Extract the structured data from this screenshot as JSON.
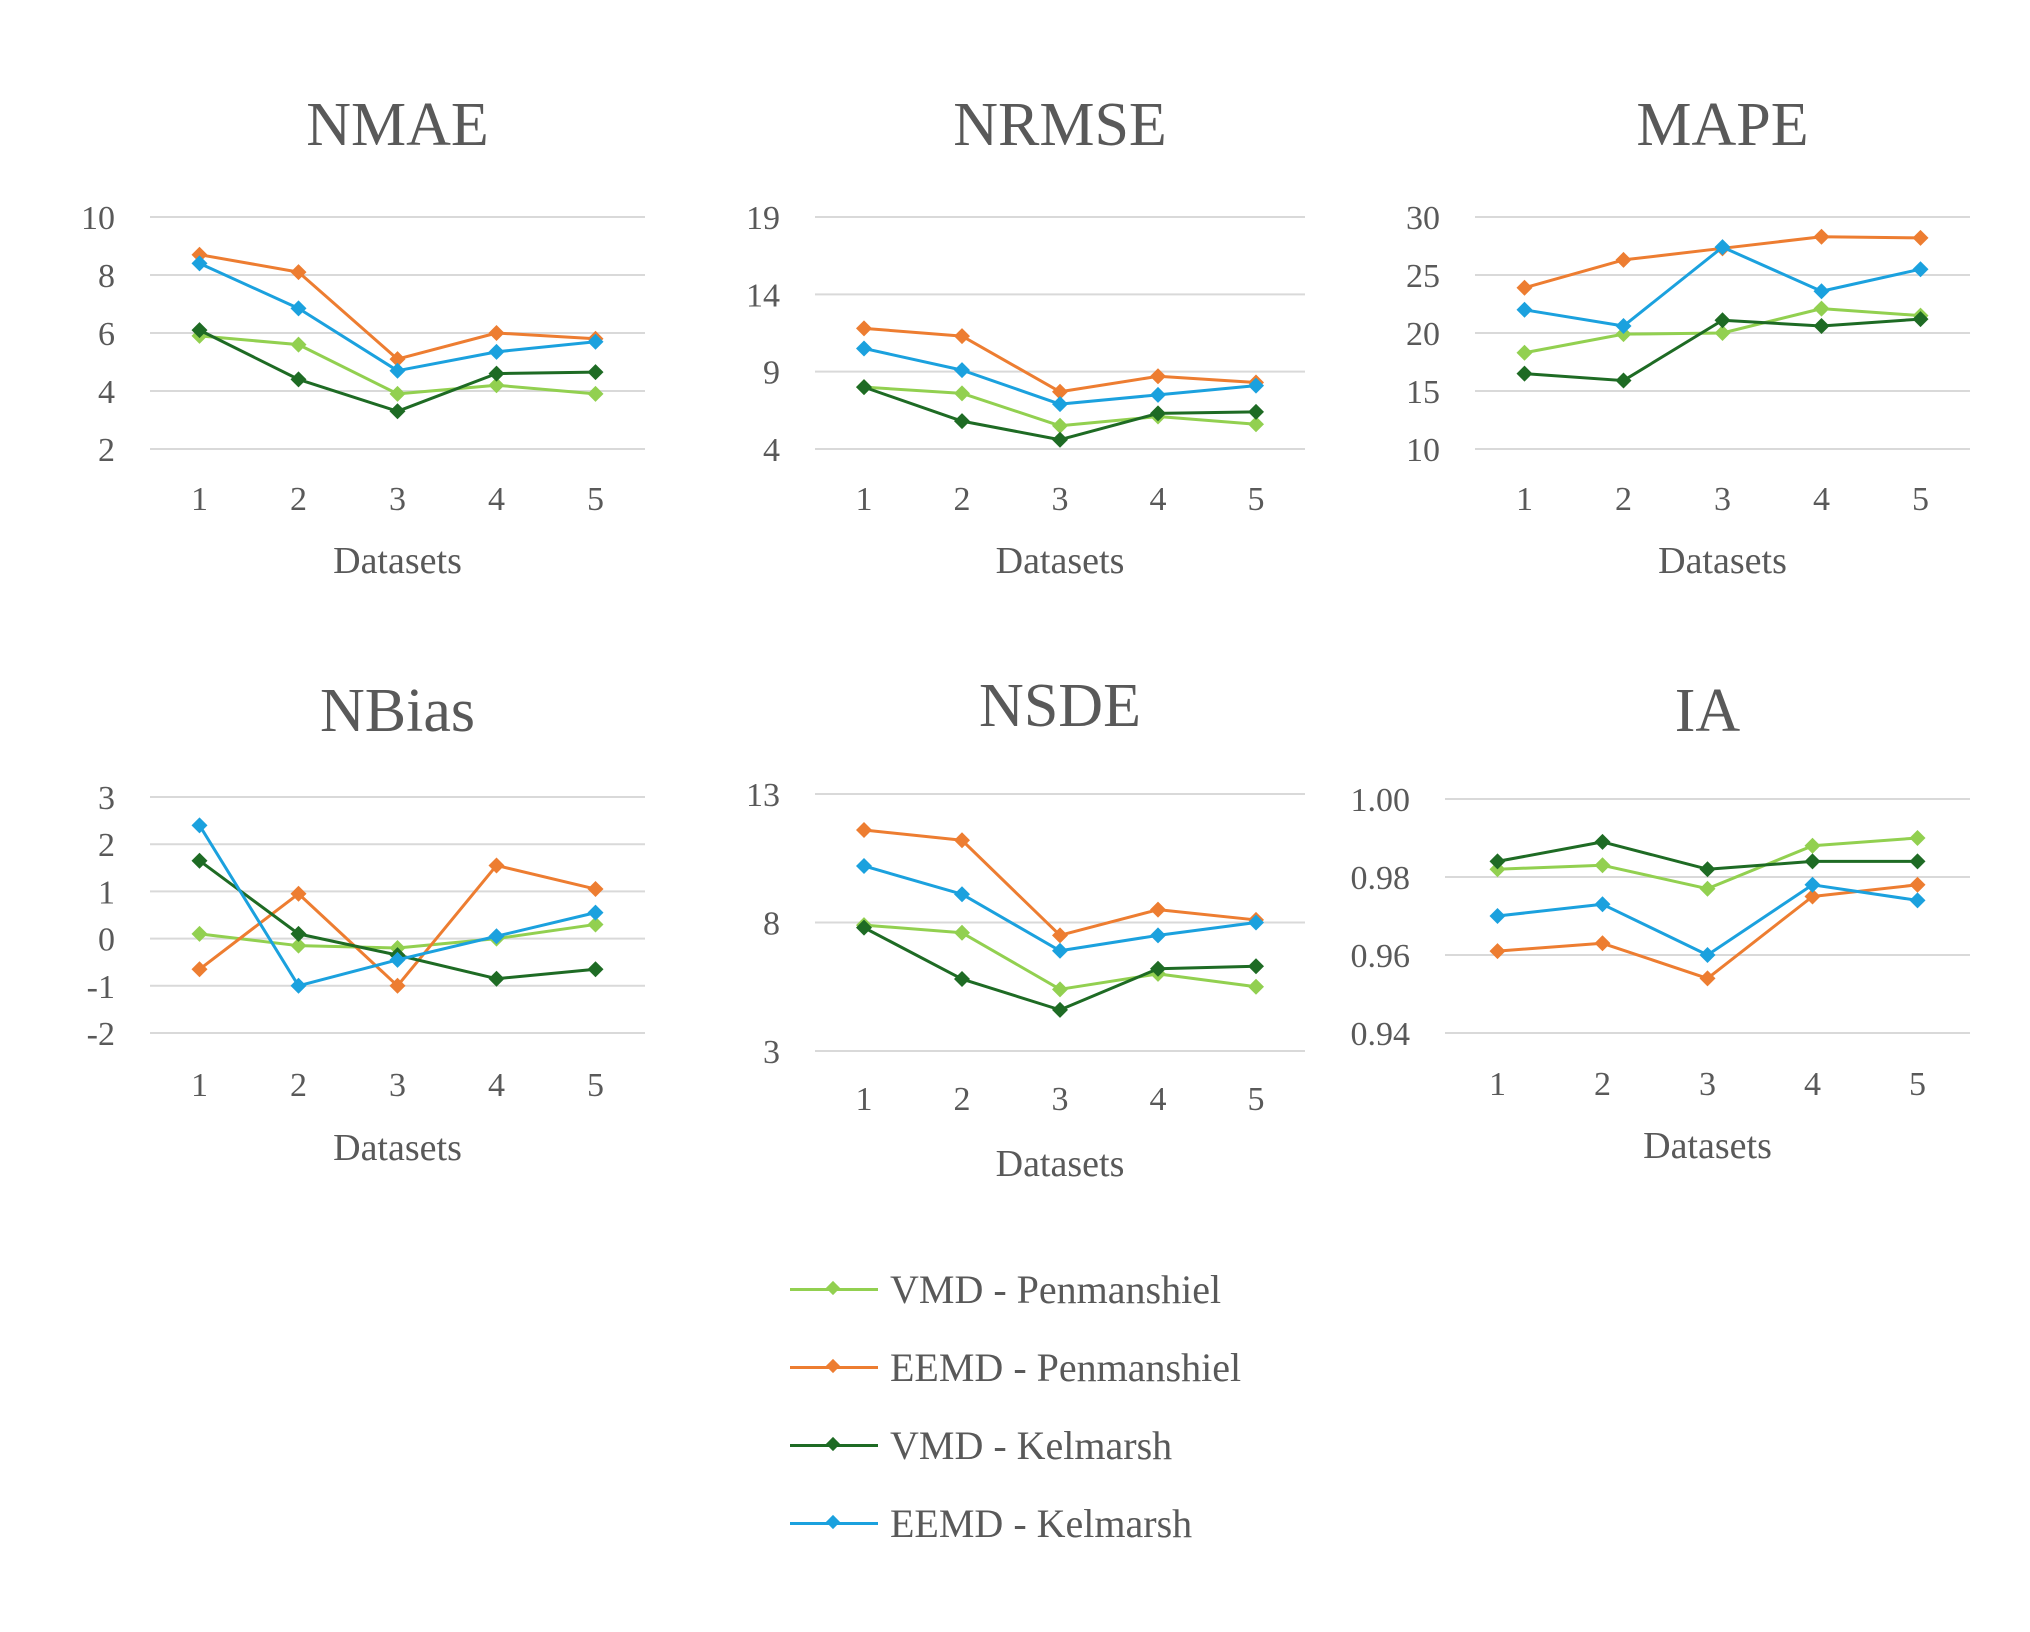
{
  "series_styles": [
    {
      "name": "VMD - Penmanshiel",
      "color": "#92D050"
    },
    {
      "name": "EEMD - Penmanshiel",
      "color": "#ED7D31"
    },
    {
      "name": "VMD - Kelmarsh",
      "color": "#1E6B24"
    },
    {
      "name": "EEMD - Kelmarsh",
      "color": "#1BA1DE"
    }
  ],
  "legend": {
    "placement": "bottom-center",
    "items": [
      "VMD - Penmanshiel",
      "EEMD - Penmanshiel",
      "VMD - Kelmarsh",
      "EEMD - Kelmarsh"
    ]
  },
  "chart_data": [
    {
      "type": "line",
      "title": "NMAE",
      "xlabel": "Datasets",
      "ylabel": "",
      "categories": [
        "1",
        "2",
        "3",
        "4",
        "5"
      ],
      "ylim": [
        2,
        10
      ],
      "yticks": [
        "2",
        "4",
        "6",
        "8",
        "10"
      ],
      "grid": true,
      "series": [
        {
          "name": "VMD - Penmanshiel",
          "values": [
            5.9,
            5.6,
            3.9,
            4.2,
            3.9
          ]
        },
        {
          "name": "EEMD - Penmanshiel",
          "values": [
            8.7,
            8.1,
            5.1,
            6.0,
            5.8
          ]
        },
        {
          "name": "VMD - Kelmarsh",
          "values": [
            6.1,
            4.4,
            3.3,
            4.6,
            4.65
          ]
        },
        {
          "name": "EEMD - Kelmarsh",
          "values": [
            8.4,
            6.85,
            4.7,
            5.35,
            5.7
          ]
        }
      ]
    },
    {
      "type": "line",
      "title": "NRMSE",
      "xlabel": "Datasets",
      "ylabel": "",
      "categories": [
        "1",
        "2",
        "3",
        "4",
        "5"
      ],
      "ylim": [
        4,
        19
      ],
      "yticks": [
        "4",
        "9",
        "14",
        "19"
      ],
      "grid": true,
      "series": [
        {
          "name": "VMD - Penmanshiel",
          "values": [
            8.0,
            7.6,
            5.5,
            6.1,
            5.6
          ]
        },
        {
          "name": "EEMD - Penmanshiel",
          "values": [
            11.8,
            11.3,
            7.7,
            8.7,
            8.3
          ]
        },
        {
          "name": "VMD - Kelmarsh",
          "values": [
            8.0,
            5.8,
            4.6,
            6.3,
            6.4
          ]
        },
        {
          "name": "EEMD - Kelmarsh",
          "values": [
            10.5,
            9.1,
            6.9,
            7.5,
            8.1
          ]
        }
      ]
    },
    {
      "type": "line",
      "title": "MAPE",
      "xlabel": "Datasets",
      "ylabel": "",
      "categories": [
        "1",
        "2",
        "3",
        "4",
        "5"
      ],
      "ylim": [
        10,
        30
      ],
      "yticks": [
        "10",
        "15",
        "20",
        "25",
        "30"
      ],
      "grid": true,
      "series": [
        {
          "name": "VMD - Penmanshiel",
          "values": [
            18.3,
            19.9,
            20.0,
            22.1,
            21.5
          ]
        },
        {
          "name": "EEMD - Penmanshiel",
          "values": [
            23.9,
            26.3,
            27.3,
            28.3,
            28.2
          ]
        },
        {
          "name": "VMD - Kelmarsh",
          "values": [
            16.5,
            15.9,
            21.1,
            20.6,
            21.2
          ]
        },
        {
          "name": "EEMD - Kelmarsh",
          "values": [
            22.0,
            20.6,
            27.4,
            23.6,
            25.5
          ]
        }
      ]
    },
    {
      "type": "line",
      "title": "NBias",
      "xlabel": "Datasets",
      "ylabel": "",
      "categories": [
        "1",
        "2",
        "3",
        "4",
        "5"
      ],
      "ylim": [
        -2,
        3
      ],
      "yticks": [
        "-2",
        "-1",
        "0",
        "1",
        "2",
        "3"
      ],
      "grid": true,
      "series": [
        {
          "name": "VMD - Penmanshiel",
          "values": [
            0.1,
            -0.15,
            -0.2,
            0.0,
            0.3
          ]
        },
        {
          "name": "EEMD - Penmanshiel",
          "values": [
            -0.65,
            0.95,
            -1.0,
            1.55,
            1.05
          ]
        },
        {
          "name": "VMD - Kelmarsh",
          "values": [
            1.65,
            0.1,
            -0.35,
            -0.85,
            -0.65
          ]
        },
        {
          "name": "EEMD - Kelmarsh",
          "values": [
            2.4,
            -1.0,
            -0.45,
            0.05,
            0.55
          ]
        }
      ]
    },
    {
      "type": "line",
      "title": "NSDE",
      "xlabel": "Datasets",
      "ylabel": "",
      "categories": [
        "1",
        "2",
        "3",
        "4",
        "5"
      ],
      "ylim": [
        3,
        13
      ],
      "yticks": [
        "3",
        "8",
        "13"
      ],
      "grid": true,
      "series": [
        {
          "name": "VMD - Penmanshiel",
          "values": [
            7.9,
            7.6,
            5.4,
            6.0,
            5.5
          ]
        },
        {
          "name": "EEMD - Penmanshiel",
          "values": [
            11.6,
            11.2,
            7.5,
            8.5,
            8.1
          ]
        },
        {
          "name": "VMD - Kelmarsh",
          "values": [
            7.8,
            5.8,
            4.6,
            6.2,
            6.3
          ]
        },
        {
          "name": "EEMD - Kelmarsh",
          "values": [
            10.2,
            9.1,
            6.9,
            7.5,
            8.0
          ]
        }
      ]
    },
    {
      "type": "line",
      "title": "IA",
      "xlabel": "Datasets",
      "ylabel": "",
      "categories": [
        "1",
        "2",
        "3",
        "4",
        "5"
      ],
      "ylim": [
        0.94,
        1.0
      ],
      "yticks": [
        "0.94",
        "0.96",
        "0.98",
        "1.00"
      ],
      "grid": true,
      "series": [
        {
          "name": "VMD - Penmanshiel",
          "values": [
            0.982,
            0.983,
            0.977,
            0.988,
            0.99
          ]
        },
        {
          "name": "EEMD - Penmanshiel",
          "values": [
            0.961,
            0.963,
            0.954,
            0.975,
            0.978
          ]
        },
        {
          "name": "VMD - Kelmarsh",
          "values": [
            0.984,
            0.989,
            0.982,
            0.984,
            0.984
          ]
        },
        {
          "name": "EEMD - Kelmarsh",
          "values": [
            0.97,
            0.973,
            0.96,
            0.978,
            0.974
          ]
        }
      ]
    }
  ]
}
